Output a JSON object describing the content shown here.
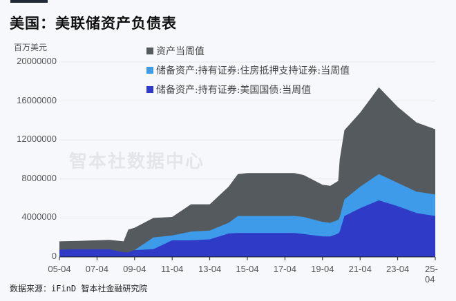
{
  "header": {
    "title": "美国：美联储资产负债表",
    "unit": "百万美元"
  },
  "legend": [
    {
      "label": "资产当周值",
      "color": "#555a5e"
    },
    {
      "label": "储备资产:持有证券:住房抵押支持证券:当周值",
      "color": "#3d9be9"
    },
    {
      "label": "储备资产:持有证券:美国国债:当周值",
      "color": "#2f3bc6"
    }
  ],
  "watermark": "智本社数据中心",
  "footer": {
    "source": "数据来源：iFinD 智本社金融研究院"
  },
  "axes": {
    "y_ticks": [
      "20000000",
      "16000000",
      "12000000",
      "8000000",
      "4000000",
      "0"
    ],
    "x_ticks": [
      "05-04",
      "07-04",
      "09-04",
      "11-04",
      "13-04",
      "15-04",
      "17-04",
      "19-04",
      "21-04",
      "23-04",
      "25-04"
    ]
  },
  "chart_data": {
    "type": "area",
    "title": "美国：美联储资产负债表",
    "xlabel": "",
    "ylabel": "百万美元",
    "ylim": [
      0,
      20000000
    ],
    "grid": true,
    "legend_position": "top",
    "x": [
      "2005-04",
      "2006-04",
      "2007-04",
      "2007-12",
      "2008-09",
      "2008-12",
      "2009-04",
      "2010-04",
      "2011-04",
      "2012-04",
      "2013-04",
      "2014-04",
      "2014-10",
      "2015-04",
      "2016-04",
      "2017-04",
      "2017-10",
      "2018-04",
      "2019-04",
      "2019-09",
      "2020-02",
      "2020-03",
      "2020-06",
      "2021-04",
      "2022-04",
      "2023-04",
      "2024-04",
      "2025-04"
    ],
    "series": [
      {
        "name": "资产当周值",
        "values": [
          1600000,
          1650000,
          1700000,
          1750000,
          1600000,
          2800000,
          3000000,
          4000000,
          4100000,
          5400000,
          5400000,
          7200000,
          8500000,
          8600000,
          8600000,
          8600000,
          8600000,
          8400000,
          7400000,
          7300000,
          7800000,
          10000000,
          13000000,
          14800000,
          17400000,
          15400000,
          13800000,
          13100000
        ]
      },
      {
        "name": "储备资产:持有证券:住房抵押支持证券:当周值",
        "values": [
          0,
          0,
          0,
          0,
          0,
          0,
          700000,
          2000000,
          2200000,
          2600000,
          2700000,
          3500000,
          4200000,
          4200000,
          4200000,
          4200000,
          4200000,
          4100000,
          3600000,
          3500000,
          3800000,
          4100000,
          5900000,
          7200000,
          8500000,
          7600000,
          6700000,
          6400000
        ]
      },
      {
        "name": "储备资产:持有证券:美国国债:当周值",
        "values": [
          750000,
          780000,
          780000,
          780000,
          480000,
          480000,
          700000,
          800000,
          1700000,
          1700000,
          1800000,
          2400000,
          2450000,
          2450000,
          2450000,
          2450000,
          2450000,
          2350000,
          2100000,
          2100000,
          2400000,
          2600000,
          4200000,
          5000000,
          5800000,
          5200000,
          4500000,
          4200000
        ]
      }
    ]
  }
}
